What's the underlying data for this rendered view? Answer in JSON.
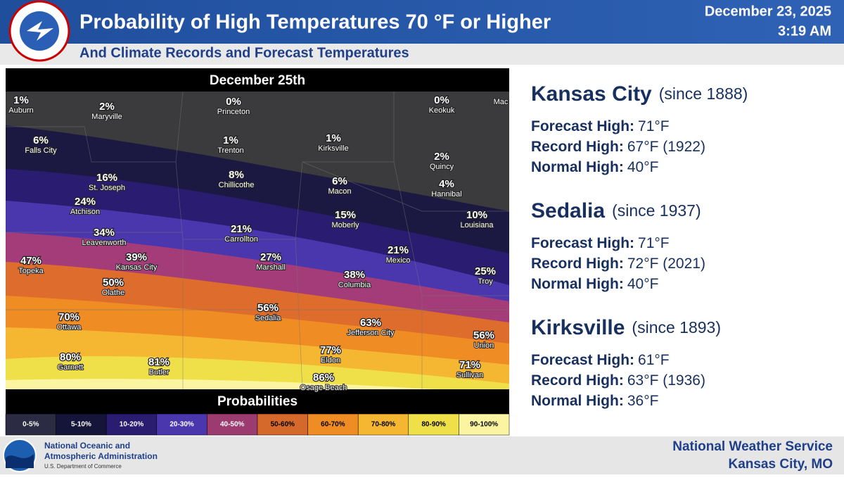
{
  "header": {
    "title": "Probability of High Temperatures 70 °F or Higher",
    "subtitle": "And Climate Records and Forecast Temperatures",
    "date": "December 23, 2025",
    "time": "3:19 AM"
  },
  "map": {
    "title": "December 25th",
    "cities": [
      {
        "pct": "1%",
        "name": "Auburn"
      },
      {
        "pct": "2%",
        "name": "Maryville"
      },
      {
        "pct": "0%",
        "name": "Princeton"
      },
      {
        "pct": "0%",
        "name": "Keokuk"
      },
      {
        "name": "Mac"
      },
      {
        "pct": "6%",
        "name": "Falls City"
      },
      {
        "pct": "1%",
        "name": "Trenton"
      },
      {
        "pct": "1%",
        "name": "Kirksville"
      },
      {
        "pct": "2%",
        "name": "Quincy"
      },
      {
        "pct": "16%",
        "name": "St. Joseph"
      },
      {
        "pct": "8%",
        "name": "Chillicothe"
      },
      {
        "pct": "6%",
        "name": "Macon"
      },
      {
        "pct": "4%",
        "name": "Hannibal"
      },
      {
        "pct": "24%",
        "name": "Atchison"
      },
      {
        "pct": "15%",
        "name": "Moberly"
      },
      {
        "pct": "10%",
        "name": "Louisiana"
      },
      {
        "pct": "34%",
        "name": "Leavenworth"
      },
      {
        "pct": "21%",
        "name": "Carrollton"
      },
      {
        "pct": "21%",
        "name": "Mexico"
      },
      {
        "pct": "47%",
        "name": "Topeka"
      },
      {
        "pct": "39%",
        "name": "Kansas City"
      },
      {
        "pct": "27%",
        "name": "Marshall"
      },
      {
        "pct": "38%",
        "name": "Columbia"
      },
      {
        "pct": "25%",
        "name": "Troy"
      },
      {
        "pct": "50%",
        "name": "Olathe"
      },
      {
        "pct": "56%",
        "name": "Sedalia"
      },
      {
        "pct": "70%",
        "name": "Ottawa"
      },
      {
        "pct": "63%",
        "name": "Jefferson City"
      },
      {
        "pct": "56%",
        "name": "Union"
      },
      {
        "pct": "77%",
        "name": "Eldon"
      },
      {
        "pct": "80%",
        "name": "Garnett"
      },
      {
        "pct": "81%",
        "name": "Butler"
      },
      {
        "pct": "71%",
        "name": "Sullivan"
      },
      {
        "pct": "86%",
        "name": "Osage Beach"
      }
    ]
  },
  "legend": {
    "title": "Probabilities",
    "items": [
      "0-5%",
      "5-10%",
      "10-20%",
      "20-30%",
      "40-50%",
      "50-60%",
      "60-70%",
      "70-80%",
      "80-90%",
      "90-100%"
    ]
  },
  "stations": [
    {
      "name": "Kansas City",
      "since": "(since 1888)",
      "rows": [
        {
          "label": "Forecast High:",
          "value": "71°F"
        },
        {
          "label": "Record High:",
          "value": "67°F (1922)"
        },
        {
          "label": "Normal High:",
          "value": "40°F"
        }
      ]
    },
    {
      "name": "Sedalia",
      "since": "(since 1937)",
      "rows": [
        {
          "label": "Forecast High:",
          "value": "71°F"
        },
        {
          "label": "Record High:",
          "value": "72°F (2021)"
        },
        {
          "label": "Normal High:",
          "value": "40°F"
        }
      ]
    },
    {
      "name": "Kirksville",
      "since": "(since 1893)",
      "rows": [
        {
          "label": "Forecast High:",
          "value": "61°F"
        },
        {
          "label": "Record High:",
          "value": "63°F (1936)"
        },
        {
          "label": "Normal High:",
          "value": "36°F"
        }
      ]
    }
  ],
  "footer": {
    "agency_line1": "National Oceanic and",
    "agency_line2": "Atmospheric Administration",
    "department": "U.S. Department of Commerce",
    "office_line1": "National Weather Service",
    "office_line2": "Kansas City, MO"
  }
}
